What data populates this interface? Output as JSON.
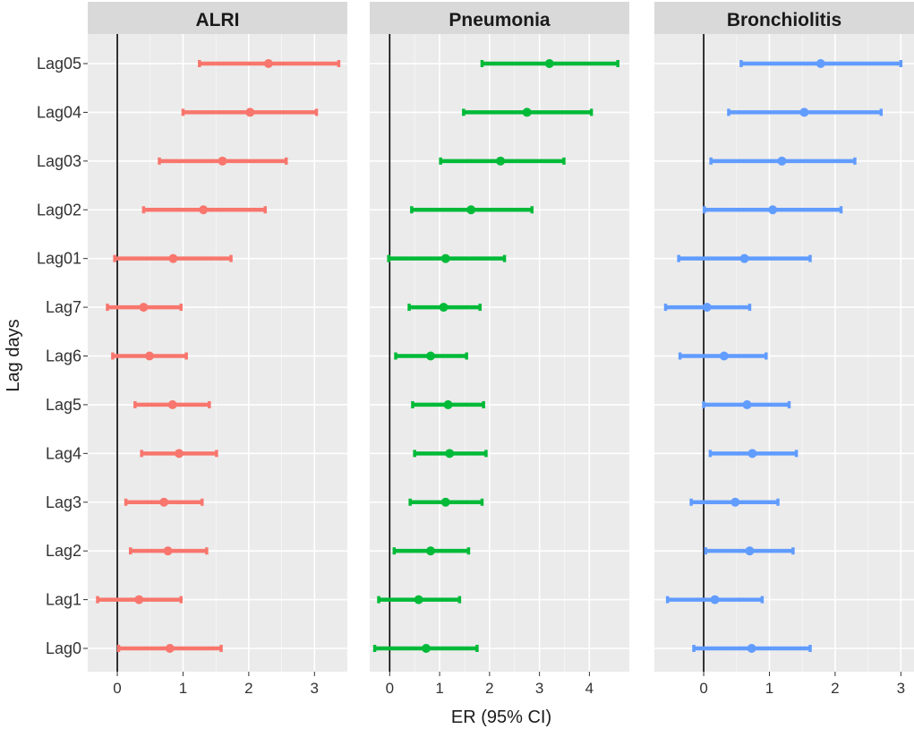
{
  "chart_data": {
    "type": "forest",
    "xlabel": "ER (95% CI)",
    "ylabel": "Lag days",
    "categories": [
      "Lag05",
      "Lag04",
      "Lag03",
      "Lag02",
      "Lag01",
      "Lag7",
      "Lag6",
      "Lag5",
      "Lag4",
      "Lag3",
      "Lag2",
      "Lag1",
      "Lag0"
    ],
    "reference_line_x": 0,
    "panels": [
      {
        "title": "ALRI",
        "color": "#F8766D",
        "xlim": [
          -0.45,
          3.5
        ],
        "xticks": [
          0,
          1,
          2,
          3
        ],
        "est": [
          2.3,
          2.02,
          1.6,
          1.31,
          0.85,
          0.4,
          0.49,
          0.84,
          0.94,
          0.71,
          0.77,
          0.33,
          0.8
        ],
        "lower": [
          1.25,
          1.0,
          0.64,
          0.4,
          -0.04,
          -0.15,
          -0.07,
          0.27,
          0.37,
          0.13,
          0.2,
          -0.3,
          0.02
        ],
        "upper": [
          3.37,
          3.03,
          2.57,
          2.25,
          1.73,
          0.97,
          1.05,
          1.4,
          1.51,
          1.29,
          1.36,
          0.97,
          1.58
        ]
      },
      {
        "title": "Pneumonia",
        "color": "#00BA38",
        "xlim": [
          -0.4,
          4.8
        ],
        "xticks": [
          0,
          1,
          2,
          3,
          4
        ],
        "est": [
          3.2,
          2.75,
          2.22,
          1.63,
          1.12,
          1.08,
          0.82,
          1.17,
          1.2,
          1.12,
          0.82,
          0.58,
          0.73
        ],
        "lower": [
          1.85,
          1.48,
          1.02,
          0.44,
          -0.02,
          0.39,
          0.12,
          0.46,
          0.5,
          0.41,
          0.09,
          -0.22,
          -0.3
        ],
        "upper": [
          4.57,
          4.04,
          3.49,
          2.85,
          2.3,
          1.81,
          1.54,
          1.88,
          1.93,
          1.85,
          1.58,
          1.4,
          1.75
        ]
      },
      {
        "title": "Bronchiolitis",
        "color": "#619CFF",
        "xlim": [
          -0.75,
          3.2
        ],
        "xticks": [
          0,
          1,
          2,
          3
        ],
        "est": [
          1.78,
          1.53,
          1.19,
          1.05,
          0.62,
          0.05,
          0.31,
          0.66,
          0.74,
          0.48,
          0.7,
          0.17,
          0.73
        ],
        "lower": [
          0.57,
          0.38,
          0.11,
          0.01,
          -0.38,
          -0.58,
          -0.36,
          0.0,
          0.1,
          -0.19,
          0.03,
          -0.55,
          -0.15
        ],
        "upper": [
          3.0,
          2.7,
          2.3,
          2.09,
          1.62,
          0.7,
          0.95,
          1.3,
          1.41,
          1.13,
          1.36,
          0.89,
          1.62
        ]
      }
    ]
  }
}
